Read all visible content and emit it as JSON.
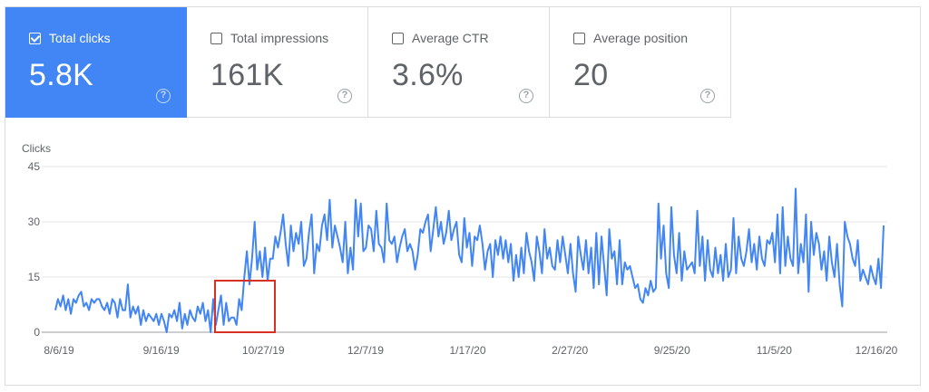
{
  "metrics": [
    {
      "label": "Total clicks",
      "value": "5.8K",
      "checked": true
    },
    {
      "label": "Total impressions",
      "value": "161K",
      "checked": false
    },
    {
      "label": "Average CTR",
      "value": "3.6%",
      "checked": false
    },
    {
      "label": "Average position",
      "value": "20",
      "checked": false
    }
  ],
  "help_glyph": "?",
  "colors": {
    "active_card": "#4285f4",
    "line": "#4285f4",
    "highlight_box": "#d93025",
    "grid": "#e0e0e0"
  },
  "chart_data": {
    "type": "line",
    "ylabel": "Clicks",
    "ylim": [
      0,
      45
    ],
    "yticks": [
      "0",
      "15",
      "30",
      "45"
    ],
    "xtick_labels": [
      "8/6/19",
      "9/16/19",
      "10/27/19",
      "12/7/19",
      "1/17/20",
      "2/27/20",
      "9/25/20",
      "11/5/20",
      "12/16/20"
    ],
    "grid": true,
    "series": [
      {
        "values": [
          6,
          9,
          7,
          10,
          6,
          9,
          5,
          9,
          8,
          10,
          11,
          7,
          8,
          6,
          9,
          8,
          9,
          9,
          7,
          6,
          8,
          5,
          9,
          8,
          4,
          9,
          6,
          6,
          13,
          4,
          7,
          5,
          7,
          2,
          6,
          3,
          5,
          4,
          3,
          5,
          2,
          5,
          3,
          0,
          5,
          4,
          6,
          3,
          8,
          1,
          5,
          2,
          6,
          4,
          3,
          7,
          5,
          8,
          3,
          6,
          0,
          9,
          2,
          6,
          10,
          2,
          8,
          3,
          4,
          4,
          2,
          9,
          6,
          15,
          22,
          13,
          20,
          30,
          17,
          22,
          15,
          23,
          14,
          20,
          20,
          26,
          23,
          27,
          32,
          24,
          18,
          29,
          22,
          27,
          24,
          30,
          18,
          20,
          27,
          32,
          16,
          24,
          22,
          29,
          32,
          25,
          36,
          23,
          29,
          26,
          23,
          19,
          30,
          16,
          23,
          17,
          36,
          26,
          35,
          22,
          23,
          29,
          28,
          22,
          33,
          24,
          23,
          19,
          35,
          25,
          24,
          26,
          19,
          23,
          26,
          28,
          22,
          24,
          22,
          17,
          21,
          28,
          27,
          30,
          32,
          22,
          28,
          34,
          26,
          30,
          24,
          27,
          33,
          25,
          28,
          30,
          21,
          19,
          31,
          23,
          27,
          18,
          26,
          25,
          29,
          24,
          17,
          22,
          24,
          15,
          25,
          21,
          26,
          20,
          25,
          19,
          24,
          14,
          21,
          15,
          23,
          16,
          27,
          22,
          19,
          14,
          26,
          22,
          16,
          28,
          20,
          23,
          18,
          17,
          25,
          19,
          26,
          21,
          16,
          24,
          16,
          11,
          26,
          21,
          17,
          25,
          16,
          23,
          12,
          27,
          13,
          26,
          18,
          10,
          28,
          20,
          22,
          13,
          25,
          13,
          19,
          17,
          18,
          15,
          12,
          13,
          9,
          8,
          12,
          10,
          14,
          11,
          12,
          35,
          20,
          29,
          16,
          12,
          34,
          21,
          16,
          27,
          14,
          22,
          17,
          18,
          19,
          16,
          33,
          18,
          26,
          14,
          25,
          17,
          15,
          23,
          16,
          21,
          14,
          24,
          15,
          17,
          31,
          16,
          26,
          20,
          18,
          22,
          28,
          19,
          24,
          17,
          26,
          20,
          18,
          25,
          24,
          27,
          19,
          32,
          16,
          34,
          18,
          26,
          20,
          18,
          39,
          16,
          24,
          19,
          32,
          11,
          30,
          21,
          27,
          24,
          17,
          22,
          14,
          26,
          19,
          15,
          24,
          13,
          7,
          30,
          26,
          24,
          20,
          18,
          25,
          14,
          17,
          15,
          13,
          18,
          15,
          13,
          20,
          12,
          29
        ]
      }
    ]
  }
}
